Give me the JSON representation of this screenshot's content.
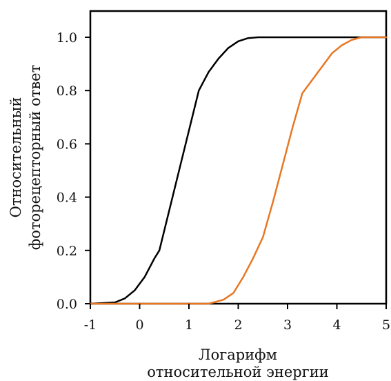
{
  "chart_data": {
    "type": "line",
    "title": "",
    "xlabel": [
      "Логарифм",
      "относительной энергии"
    ],
    "ylabel": [
      "Относительный",
      "фоторецепторный ответ"
    ],
    "xlim": [
      -1,
      5
    ],
    "ylim": [
      0.0,
      1.0
    ],
    "xticks": [
      "-1",
      "0",
      "1",
      "2",
      "3",
      "4",
      "5"
    ],
    "yticks": [
      "0.0",
      "0.2",
      "0.4",
      "0.6",
      "0.8",
      "1.0"
    ],
    "grid": false,
    "legend": "none",
    "series": [
      {
        "color": "#000000",
        "x": [
          -1.0,
          -0.5,
          -0.3,
          -0.1,
          0.1,
          0.3,
          0.4,
          0.6,
          0.8,
          1.0,
          1.2,
          1.4,
          1.6,
          1.8,
          2.0,
          2.2,
          2.4,
          2.5,
          3.0,
          4.0,
          5.0
        ],
        "y": [
          0.0,
          0.005,
          0.02,
          0.05,
          0.1,
          0.17,
          0.2,
          0.35,
          0.5,
          0.65,
          0.8,
          0.87,
          0.92,
          0.96,
          0.985,
          0.997,
          1.0,
          1.0,
          1.0,
          1.0,
          1.0
        ]
      },
      {
        "color": "#e87722",
        "x": [
          -1.0,
          0.0,
          1.0,
          1.4,
          1.7,
          1.9,
          2.1,
          2.3,
          2.5,
          2.7,
          2.9,
          3.1,
          3.3,
          3.5,
          3.7,
          3.9,
          4.1,
          4.3,
          4.5,
          4.7,
          5.0
        ],
        "y": [
          0.0,
          0.0,
          0.0,
          0.0,
          0.015,
          0.04,
          0.1,
          0.17,
          0.25,
          0.38,
          0.52,
          0.66,
          0.79,
          0.84,
          0.89,
          0.94,
          0.97,
          0.99,
          1.0,
          1.0,
          1.0
        ]
      }
    ]
  }
}
